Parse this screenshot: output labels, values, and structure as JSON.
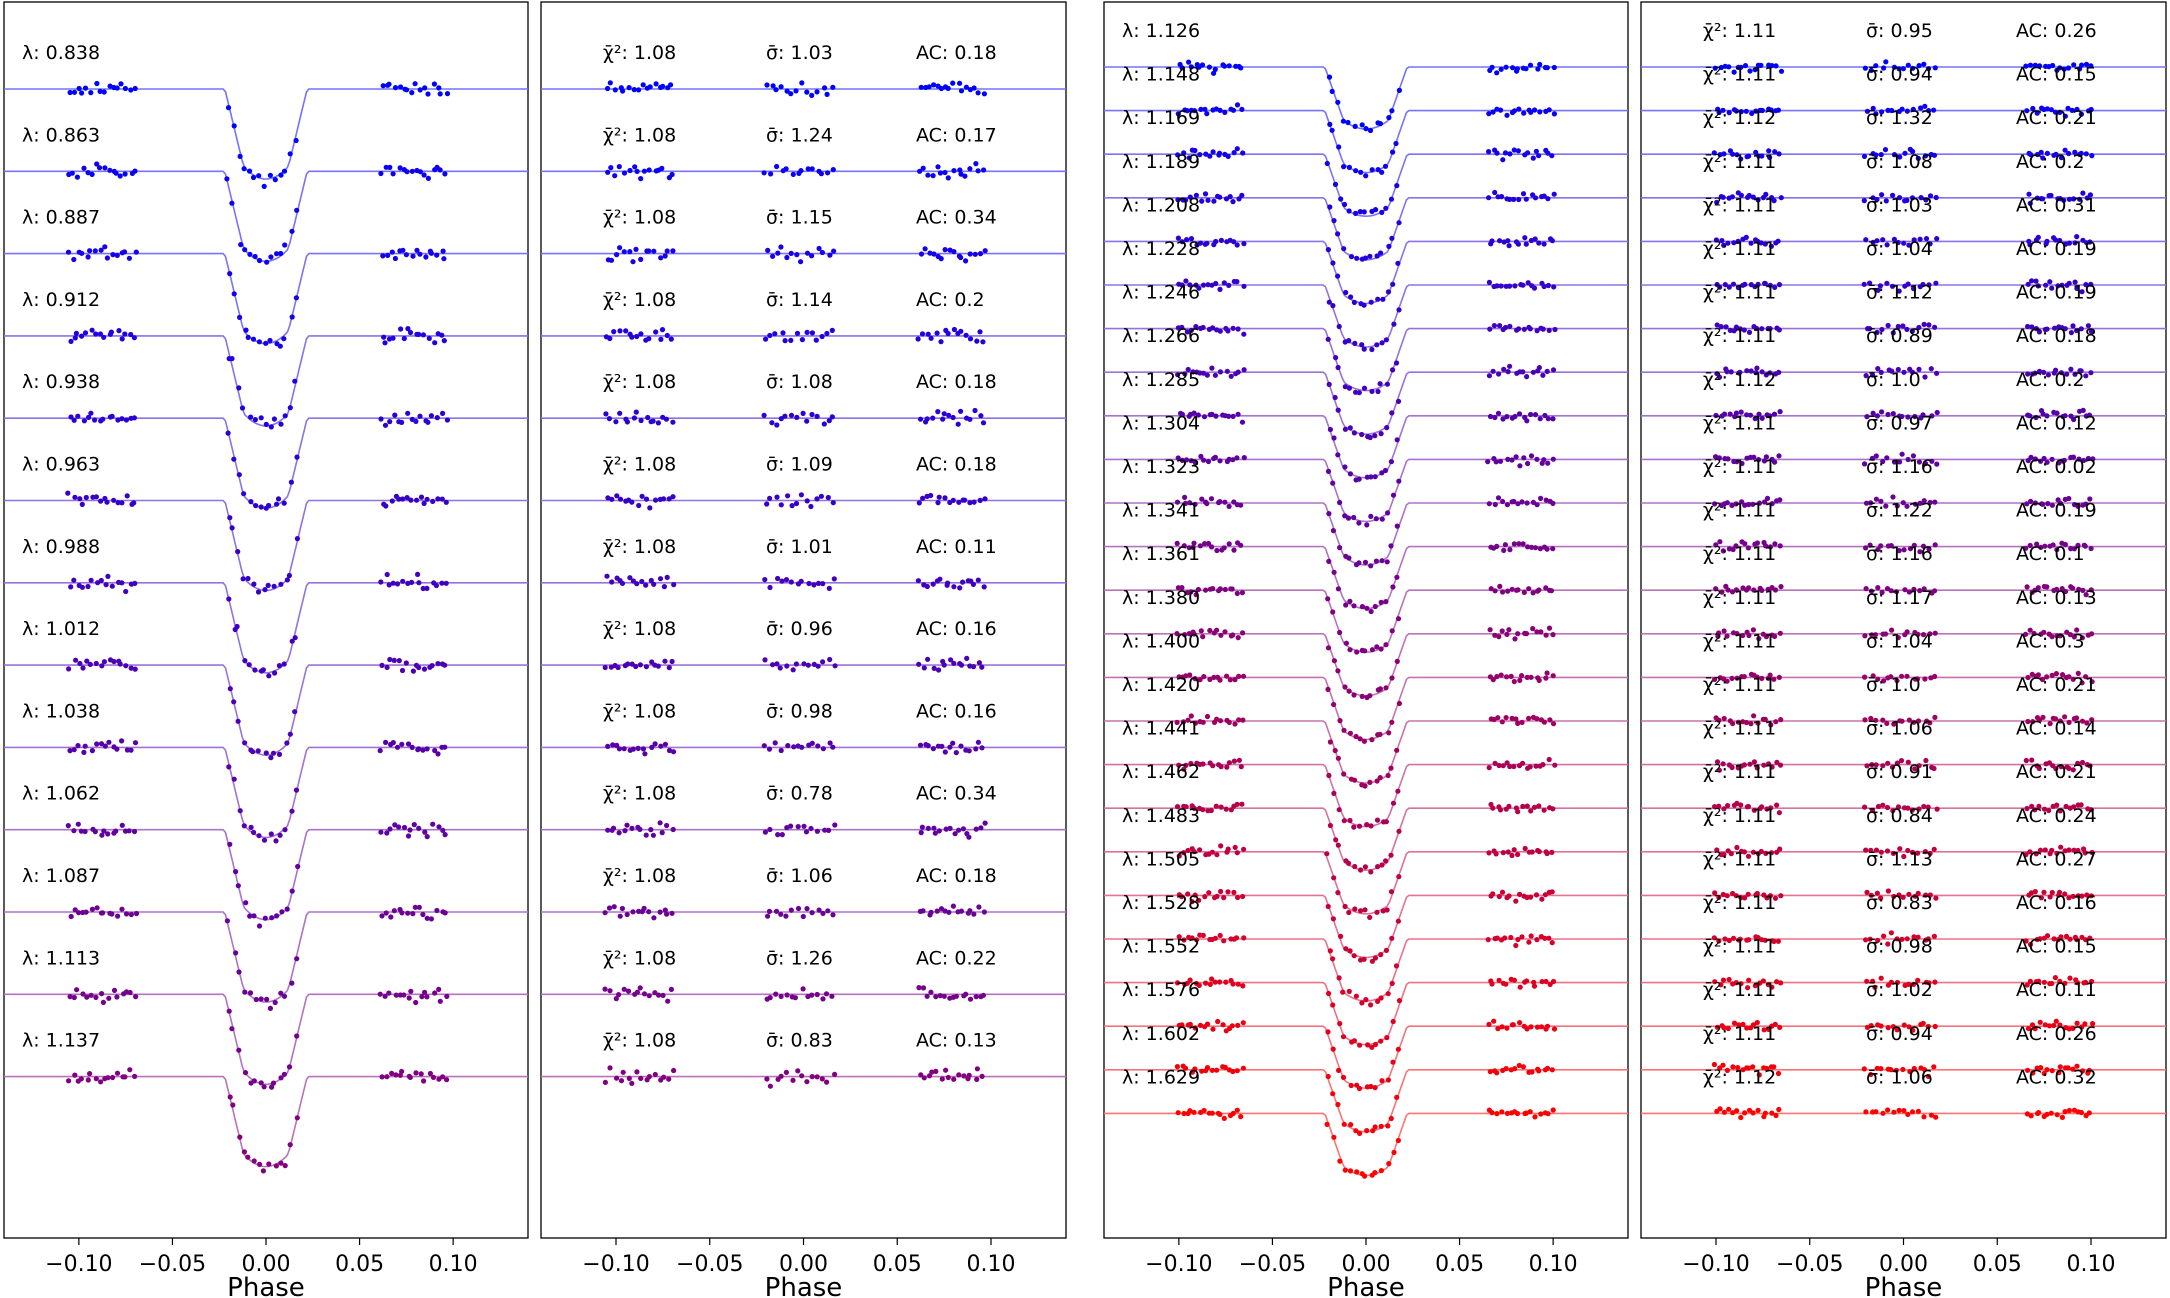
{
  "chart_data": [
    {
      "type": "scatter",
      "panel": "left-data",
      "xlabel": "Phase",
      "xlim": [
        -0.14,
        0.14
      ],
      "xticks": [
        -0.1,
        -0.05,
        0.0,
        0.05,
        0.1
      ],
      "xtick_labels": [
        "−0.10",
        "−0.05",
        "0.00",
        "0.05",
        "0.10"
      ],
      "transit": {
        "ingress_start": -0.022,
        "full_start": -0.012,
        "full_end": 0.012,
        "egress_end": 0.022
      },
      "color_start": "#0000ff",
      "color_end": "#800080",
      "series": [
        {
          "label": "λ: 0.838"
        },
        {
          "label": "λ: 0.863"
        },
        {
          "label": "λ: 0.887"
        },
        {
          "label": "λ: 0.912"
        },
        {
          "label": "λ: 0.938"
        },
        {
          "label": "λ: 0.963"
        },
        {
          "label": "λ: 0.988"
        },
        {
          "label": "λ: 1.012"
        },
        {
          "label": "λ: 1.038"
        },
        {
          "label": "λ: 1.062"
        },
        {
          "label": "λ: 1.087"
        },
        {
          "label": "λ: 1.113"
        },
        {
          "label": "λ: 1.137"
        }
      ]
    },
    {
      "type": "scatter",
      "panel": "left-residuals",
      "xlabel": "Phase",
      "xlim": [
        -0.14,
        0.14
      ],
      "xticks": [
        -0.1,
        -0.05,
        0.0,
        0.05,
        0.1
      ],
      "xtick_labels": [
        "−0.10",
        "−0.05",
        "0.00",
        "0.05",
        "0.10"
      ],
      "color_start": "#0000ff",
      "color_end": "#800080",
      "rows": [
        {
          "chi2": "χ̄²: 1.08",
          "sigma": "σ̄: 1.03",
          "ac": "AC: 0.18"
        },
        {
          "chi2": "χ̄²: 1.08",
          "sigma": "σ̄: 1.24",
          "ac": "AC: 0.17"
        },
        {
          "chi2": "χ̄²: 1.08",
          "sigma": "σ̄: 1.15",
          "ac": "AC: 0.34"
        },
        {
          "chi2": "χ̄²: 1.08",
          "sigma": "σ̄: 1.14",
          "ac": "AC: 0.2"
        },
        {
          "chi2": "χ̄²: 1.08",
          "sigma": "σ̄: 1.08",
          "ac": "AC: 0.18"
        },
        {
          "chi2": "χ̄²: 1.08",
          "sigma": "σ̄: 1.09",
          "ac": "AC: 0.18"
        },
        {
          "chi2": "χ̄²: 1.08",
          "sigma": "σ̄: 1.01",
          "ac": "AC: 0.11"
        },
        {
          "chi2": "χ̄²: 1.08",
          "sigma": "σ̄: 0.96",
          "ac": "AC: 0.16"
        },
        {
          "chi2": "χ̄²: 1.08",
          "sigma": "σ̄: 0.98",
          "ac": "AC: 0.16"
        },
        {
          "chi2": "χ̄²: 1.08",
          "sigma": "σ̄: 0.78",
          "ac": "AC: 0.34"
        },
        {
          "chi2": "χ̄²: 1.08",
          "sigma": "σ̄: 1.06",
          "ac": "AC: 0.18"
        },
        {
          "chi2": "χ̄²: 1.08",
          "sigma": "σ̄: 1.26",
          "ac": "AC: 0.22"
        },
        {
          "chi2": "χ̄²: 1.08",
          "sigma": "σ̄: 0.83",
          "ac": "AC: 0.13"
        }
      ]
    },
    {
      "type": "scatter",
      "panel": "right-data",
      "xlabel": "Phase",
      "xlim": [
        -0.14,
        0.14
      ],
      "xticks": [
        -0.1,
        -0.05,
        0.0,
        0.05,
        0.1
      ],
      "xtick_labels": [
        "−0.10",
        "−0.05",
        "0.00",
        "0.05",
        "0.10"
      ],
      "transit": {
        "ingress_start": -0.022,
        "full_start": -0.012,
        "full_end": 0.012,
        "egress_end": 0.022
      },
      "color_start": "#0000ff",
      "color_end": "#ff0000",
      "series": [
        {
          "label": "λ: 1.126"
        },
        {
          "label": "λ: 1.148"
        },
        {
          "label": "λ: 1.169"
        },
        {
          "label": "λ: 1.189"
        },
        {
          "label": "λ: 1.208"
        },
        {
          "label": "λ: 1.228"
        },
        {
          "label": "λ: 1.246"
        },
        {
          "label": "λ: 1.266"
        },
        {
          "label": "λ: 1.285"
        },
        {
          "label": "λ: 1.304"
        },
        {
          "label": "λ: 1.323"
        },
        {
          "label": "λ: 1.341"
        },
        {
          "label": "λ: 1.361"
        },
        {
          "label": "λ: 1.380"
        },
        {
          "label": "λ: 1.400"
        },
        {
          "label": "λ: 1.420"
        },
        {
          "label": "λ: 1.441"
        },
        {
          "label": "λ: 1.462"
        },
        {
          "label": "λ: 1.483"
        },
        {
          "label": "λ: 1.505"
        },
        {
          "label": "λ: 1.528"
        },
        {
          "label": "λ: 1.552"
        },
        {
          "label": "λ: 1.576"
        },
        {
          "label": "λ: 1.602"
        },
        {
          "label": "λ: 1.629"
        }
      ]
    },
    {
      "type": "scatter",
      "panel": "right-residuals",
      "xlabel": "Phase",
      "xlim": [
        -0.14,
        0.14
      ],
      "xticks": [
        -0.1,
        -0.05,
        0.0,
        0.05,
        0.1
      ],
      "xtick_labels": [
        "−0.10",
        "−0.05",
        "0.00",
        "0.05",
        "0.10"
      ],
      "color_start": "#0000ff",
      "color_end": "#ff0000",
      "rows": [
        {
          "chi2": "χ̄²: 1.11",
          "sigma": "σ̄: 0.95",
          "ac": "AC: 0.26"
        },
        {
          "chi2": "χ̄²: 1.11",
          "sigma": "σ̄: 0.94",
          "ac": "AC: 0.15"
        },
        {
          "chi2": "χ̄²: 1.12",
          "sigma": "σ̄: 1.32",
          "ac": "AC: 0.21"
        },
        {
          "chi2": "χ̄²: 1.11",
          "sigma": "σ̄: 1.08",
          "ac": "AC: 0.2"
        },
        {
          "chi2": "χ̄²: 1.11",
          "sigma": "σ̄: 1.03",
          "ac": "AC: 0.31"
        },
        {
          "chi2": "χ̄²: 1.11",
          "sigma": "σ̄: 1.04",
          "ac": "AC: 0.19"
        },
        {
          "chi2": "χ̄²: 1.11",
          "sigma": "σ̄: 1.12",
          "ac": "AC: 0.19"
        },
        {
          "chi2": "χ̄²: 1.11",
          "sigma": "σ̄: 0.89",
          "ac": "AC: 0.18"
        },
        {
          "chi2": "χ̄²: 1.12",
          "sigma": "σ̄: 1.0",
          "ac": "AC: 0.2"
        },
        {
          "chi2": "χ̄²: 1.11",
          "sigma": "σ̄: 0.97",
          "ac": "AC: 0.12"
        },
        {
          "chi2": "χ̄²: 1.11",
          "sigma": "σ̄: 1.16",
          "ac": "AC: 0.02"
        },
        {
          "chi2": "χ̄²: 1.11",
          "sigma": "σ̄: 1.22",
          "ac": "AC: 0.19"
        },
        {
          "chi2": "χ̄²: 1.11",
          "sigma": "σ̄: 1.16",
          "ac": "AC: 0.1"
        },
        {
          "chi2": "χ̄²: 1.11",
          "sigma": "σ̄: 1.17",
          "ac": "AC: 0.13"
        },
        {
          "chi2": "χ̄²: 1.11",
          "sigma": "σ̄: 1.04",
          "ac": "AC: 0.3"
        },
        {
          "chi2": "χ̄²: 1.11",
          "sigma": "σ̄: 1.0",
          "ac": "AC: 0.21"
        },
        {
          "chi2": "χ̄²: 1.11",
          "sigma": "σ̄: 1.06",
          "ac": "AC: 0.14"
        },
        {
          "chi2": "χ̄²: 1.11",
          "sigma": "σ̄: 0.91",
          "ac": "AC: 0.21"
        },
        {
          "chi2": "χ̄²: 1.11",
          "sigma": "σ̄: 0.84",
          "ac": "AC: 0.24"
        },
        {
          "chi2": "χ̄²: 1.11",
          "sigma": "σ̄: 1.13",
          "ac": "AC: 0.27"
        },
        {
          "chi2": "χ̄²: 1.11",
          "sigma": "σ̄: 0.83",
          "ac": "AC: 0.16"
        },
        {
          "chi2": "χ̄²: 1.11",
          "sigma": "σ̄: 0.98",
          "ac": "AC: 0.15"
        },
        {
          "chi2": "χ̄²: 1.11",
          "sigma": "σ̄: 1.02",
          "ac": "AC: 0.11"
        },
        {
          "chi2": "χ̄²: 1.11",
          "sigma": "σ̄: 0.94",
          "ac": "AC: 0.26"
        },
        {
          "chi2": "χ̄²: 1.12",
          "sigma": "σ̄: 1.06",
          "ac": "AC: 0.32"
        }
      ]
    }
  ]
}
